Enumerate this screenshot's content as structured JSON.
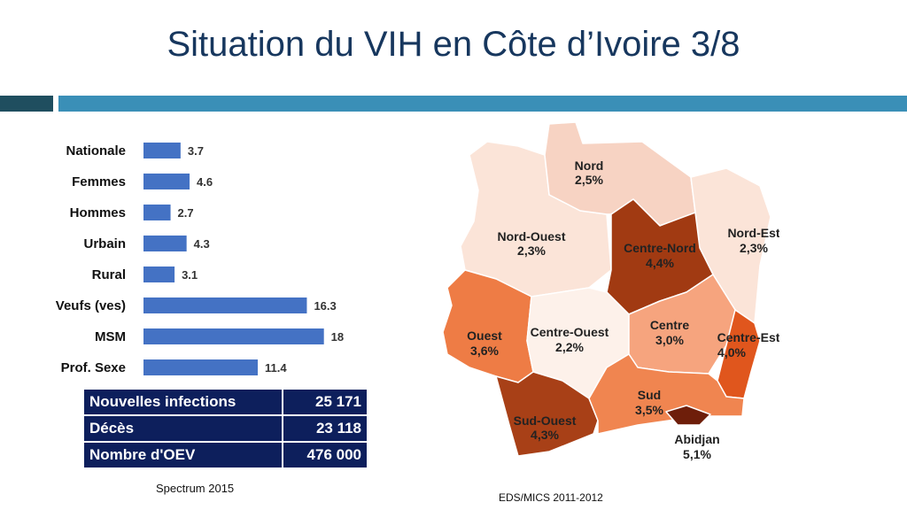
{
  "slide": {
    "title": "Situation du VIH en Côte d’Ivoire 3/8"
  },
  "chart_data": {
    "type": "bar",
    "orientation": "horizontal",
    "categories": [
      "Nationale",
      "Femmes",
      "Hommes",
      "Urbain",
      "Rural",
      "Veufs (ves)",
      "MSM",
      "Prof. Sexe"
    ],
    "values": [
      3.7,
      4.6,
      2.7,
      4.3,
      3.1,
      16.3,
      18,
      11.4
    ],
    "value_labels": [
      "3.7",
      "4.6",
      "2.7",
      "4.3",
      "3.1",
      "16.3",
      "18",
      "11.4"
    ],
    "title": "",
    "xlabel": "",
    "ylabel": "",
    "xlim": [
      0,
      19
    ],
    "bar_color": "#4472c4",
    "grid": false
  },
  "stats_table": {
    "rows": [
      {
        "label": "Nouvelles infections",
        "value": "25 171"
      },
      {
        "label": "Décès",
        "value": "23 118"
      },
      {
        "label": "Nombre d'OEV",
        "value": "476 000"
      }
    ],
    "background": "#0d1f5c"
  },
  "sources": {
    "left": "Spectrum 2015",
    "right": "EDS/MICS 2011-2012"
  },
  "map": {
    "regions": [
      {
        "name": "Nord",
        "value": "2,5%",
        "color": "#f7d3c3"
      },
      {
        "name": "Nord-Ouest",
        "value": "2,3%",
        "color": "#fbe4d8"
      },
      {
        "name": "Centre-Nord",
        "value": "4,4%",
        "color": "#a13a12"
      },
      {
        "name": "Nord-Est",
        "value": "2,3%",
        "color": "#fbe4d8"
      },
      {
        "name": "Ouest",
        "value": "3,6%",
        "color": "#ee7c45"
      },
      {
        "name": "Centre-Ouest",
        "value": "2,2%",
        "color": "#fdf1ea"
      },
      {
        "name": "Centre",
        "value": "3,0%",
        "color": "#f6a47e"
      },
      {
        "name": "Centre-Est",
        "value": "4,0%",
        "color": "#e0561d"
      },
      {
        "name": "Sud-Ouest",
        "value": "4,3%",
        "color": "#a84017"
      },
      {
        "name": "Sud",
        "value": "3,5%",
        "color": "#f08550"
      },
      {
        "name": "Abidjan",
        "value": "5,1%",
        "color": "#6e1e0a"
      }
    ]
  },
  "colors": {
    "title": "#17375e",
    "header_dark": "#1f4e5f",
    "header_light": "#3a8fb7"
  }
}
